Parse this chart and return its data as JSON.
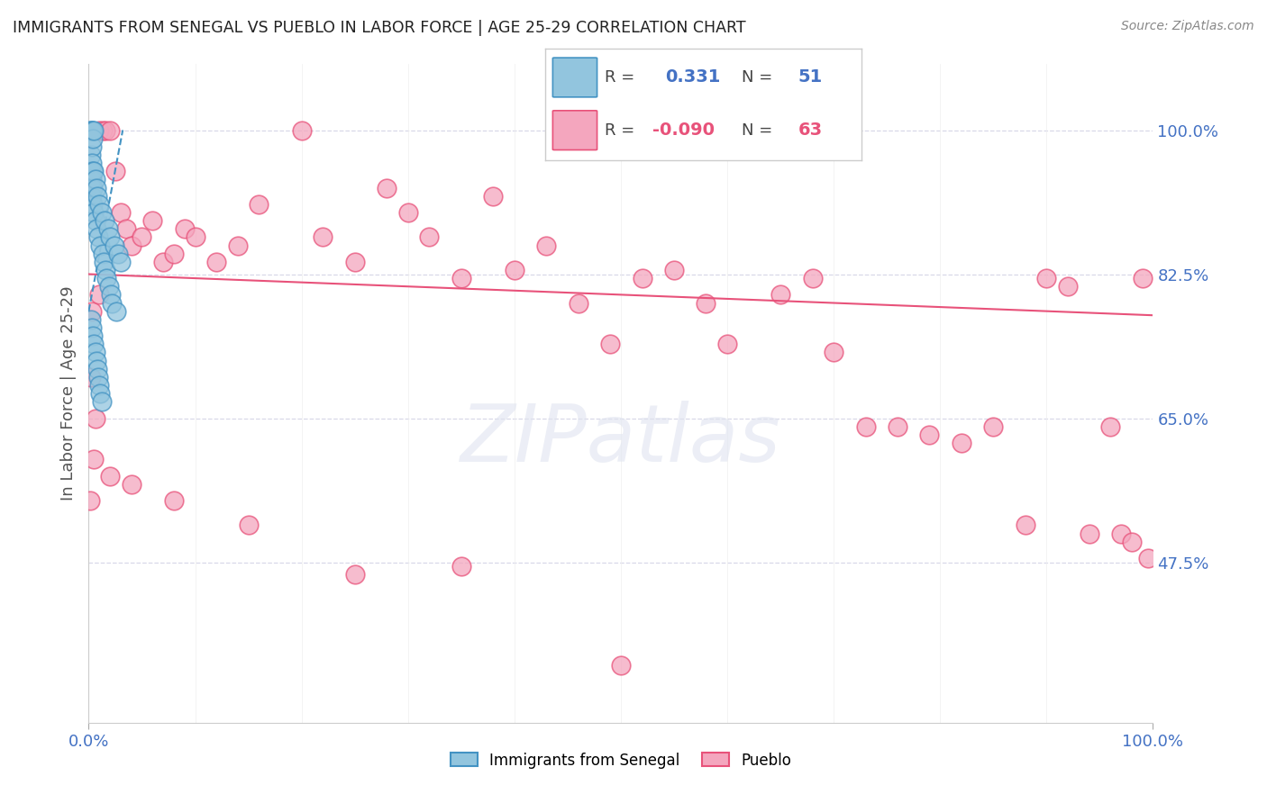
{
  "title": "IMMIGRANTS FROM SENEGAL VS PUEBLO IN LABOR FORCE | AGE 25-29 CORRELATION CHART",
  "source": "Source: ZipAtlas.com",
  "ylabel": "In Labor Force | Age 25-29",
  "xmin": 0.0,
  "xmax": 1.0,
  "ymin": 0.28,
  "ymax": 1.08,
  "yticks": [
    0.475,
    0.65,
    0.825,
    1.0
  ],
  "ytick_labels": [
    "47.5%",
    "65.0%",
    "82.5%",
    "100.0%"
  ],
  "xtick_labels": [
    "0.0%",
    "100.0%"
  ],
  "xticks": [
    0.0,
    1.0
  ],
  "legend_blue_R": "0.331",
  "legend_blue_N": "51",
  "legend_pink_R": "-0.090",
  "legend_pink_N": "63",
  "blue_color": "#92c5de",
  "pink_color": "#f4a6be",
  "blue_edge_color": "#4393c3",
  "pink_edge_color": "#e8527a",
  "background_color": "#ffffff",
  "grid_color": "#d8d8e8",
  "blue_dots_x": [
    0.001,
    0.002,
    0.002,
    0.002,
    0.003,
    0.003,
    0.003,
    0.003,
    0.003,
    0.004,
    0.004,
    0.004,
    0.004,
    0.004,
    0.005,
    0.005,
    0.005,
    0.006,
    0.006,
    0.007,
    0.007,
    0.008,
    0.009,
    0.01,
    0.011,
    0.012,
    0.013,
    0.014,
    0.015,
    0.016,
    0.017,
    0.018,
    0.019,
    0.02,
    0.021,
    0.022,
    0.024,
    0.026,
    0.028,
    0.03,
    0.002,
    0.003,
    0.004,
    0.005,
    0.006,
    0.007,
    0.008,
    0.009,
    0.01,
    0.011,
    0.012
  ],
  "blue_dots_y": [
    1.0,
    1.0,
    0.97,
    0.95,
    1.0,
    0.98,
    0.96,
    0.94,
    0.92,
    1.0,
    0.99,
    0.95,
    0.93,
    0.91,
    1.0,
    0.95,
    0.9,
    0.94,
    0.89,
    0.93,
    0.88,
    0.92,
    0.87,
    0.91,
    0.86,
    0.9,
    0.85,
    0.84,
    0.89,
    0.83,
    0.82,
    0.88,
    0.81,
    0.87,
    0.8,
    0.79,
    0.86,
    0.78,
    0.85,
    0.84,
    0.77,
    0.76,
    0.75,
    0.74,
    0.73,
    0.72,
    0.71,
    0.7,
    0.69,
    0.68,
    0.67
  ],
  "pink_dots_x": [
    0.003,
    0.006,
    0.01,
    0.013,
    0.016,
    0.02,
    0.025,
    0.03,
    0.035,
    0.04,
    0.05,
    0.06,
    0.07,
    0.08,
    0.09,
    0.1,
    0.12,
    0.14,
    0.16,
    0.2,
    0.22,
    0.25,
    0.28,
    0.3,
    0.32,
    0.35,
    0.38,
    0.4,
    0.43,
    0.46,
    0.49,
    0.52,
    0.55,
    0.58,
    0.6,
    0.65,
    0.68,
    0.7,
    0.73,
    0.76,
    0.79,
    0.82,
    0.85,
    0.88,
    0.9,
    0.92,
    0.94,
    0.96,
    0.97,
    0.98,
    0.99,
    0.995,
    0.5,
    0.35,
    0.25,
    0.15,
    0.08,
    0.04,
    0.02,
    0.01,
    0.005,
    0.002,
    0.001
  ],
  "pink_dots_y": [
    0.78,
    0.65,
    1.0,
    1.0,
    1.0,
    1.0,
    0.95,
    0.9,
    0.88,
    0.86,
    0.87,
    0.89,
    0.84,
    0.85,
    0.88,
    0.87,
    0.84,
    0.86,
    0.91,
    1.0,
    0.87,
    0.84,
    0.93,
    0.9,
    0.87,
    0.82,
    0.92,
    0.83,
    0.86,
    0.79,
    0.74,
    0.82,
    0.83,
    0.79,
    0.74,
    0.8,
    0.82,
    0.73,
    0.64,
    0.64,
    0.63,
    0.62,
    0.64,
    0.52,
    0.82,
    0.81,
    0.51,
    0.64,
    0.51,
    0.5,
    0.82,
    0.48,
    0.35,
    0.47,
    0.46,
    0.52,
    0.55,
    0.57,
    0.58,
    0.8,
    0.6,
    0.7,
    0.55
  ],
  "pink_trend_y_start": 0.825,
  "pink_trend_y_end": 0.775,
  "blue_trend_x_end": 0.032,
  "blue_trend_y_start": 0.78,
  "blue_trend_y_end": 1.0,
  "watermark": "ZIPatlas",
  "bottom_legend_blue": "Immigrants from Senegal",
  "bottom_legend_pink": "Pueblo"
}
